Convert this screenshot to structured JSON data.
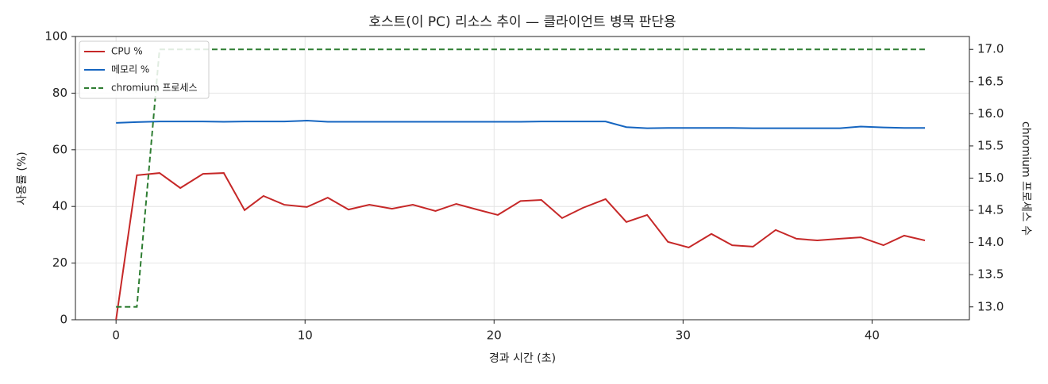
{
  "chart_data": {
    "type": "line",
    "title": "호스트(이 PC) 리소스 추이 — 클라이언트 병목 판단용",
    "x_label": "경과 시간 (초)",
    "y_label": "사용률 (%)",
    "y2_label": "chromium 프로세스 수",
    "x": [
      0,
      1.1,
      2.3,
      3.4,
      4.6,
      5.7,
      6.8,
      7.8,
      8.9,
      10.1,
      11.2,
      12.3,
      13.4,
      14.6,
      15.7,
      16.9,
      18.0,
      19.1,
      20.2,
      21.4,
      22.5,
      23.6,
      24.7,
      25.9,
      27.0,
      28.1,
      29.2,
      30.3,
      31.5,
      32.6,
      33.7,
      34.9,
      36.0,
      37.1,
      38.3,
      39.4,
      40.6,
      41.7,
      42.8
    ],
    "series": [
      {
        "name": "CPU %",
        "color": "#c62828",
        "axis": "y",
        "linestyle": "solid",
        "values": [
          0,
          51,
          51.8,
          46.5,
          51.5,
          51.8,
          38.7,
          43.7,
          40.6,
          39.8,
          43.1,
          38.9,
          40.6,
          39.2,
          40.6,
          38.4,
          40.9,
          38.9,
          37,
          41.9,
          42.3,
          35.9,
          39.5,
          42.6,
          34.5,
          37,
          27.5,
          25.5,
          30.3,
          26.3,
          25.8,
          31.7,
          28.6,
          28,
          28.6,
          29.1,
          26.3,
          29.7,
          28
        ]
      },
      {
        "name": "메모리 %",
        "color": "#1565c0",
        "axis": "y",
        "linestyle": "solid",
        "values": [
          69.5,
          69.8,
          70,
          70,
          70,
          69.9,
          70,
          70,
          70,
          70.3,
          69.9,
          69.9,
          69.9,
          69.9,
          69.9,
          69.9,
          69.9,
          69.9,
          69.9,
          69.9,
          70,
          70,
          70,
          70,
          68,
          67.6,
          67.7,
          67.7,
          67.7,
          67.7,
          67.6,
          67.6,
          67.6,
          67.6,
          67.6,
          68.2,
          67.9,
          67.7,
          67.7
        ]
      },
      {
        "name": "chromium 프로세스",
        "color": "#2e7d32",
        "axis": "y2",
        "linestyle": "dashed",
        "values": [
          13,
          13,
          17,
          17,
          17,
          17,
          17,
          17,
          17,
          17,
          17,
          17,
          17,
          17,
          17,
          17,
          17,
          17,
          17,
          17,
          17,
          17,
          17,
          17,
          17,
          17,
          17,
          17,
          17,
          17,
          17,
          17,
          17,
          17,
          17,
          17,
          17,
          17,
          17
        ]
      }
    ],
    "xlim": [
      -2.15,
      45.15
    ],
    "xticks": [
      0,
      10,
      20,
      30,
      40
    ],
    "ylim": [
      0,
      100
    ],
    "yticks": [
      0,
      20,
      40,
      60,
      80,
      100
    ],
    "y2lim": [
      12.8,
      17.2
    ],
    "y2ticks": [
      {
        "value": 13,
        "label": "13.0"
      },
      13.5,
      {
        "value": 14,
        "label": "14.0"
      },
      14.5,
      {
        "value": 15,
        "label": "15.0"
      },
      15.5,
      {
        "value": 16,
        "label": "16.0"
      },
      16.5,
      {
        "value": 17,
        "label": "17.0"
      }
    ],
    "grid": true,
    "legend": "upper-left"
  }
}
